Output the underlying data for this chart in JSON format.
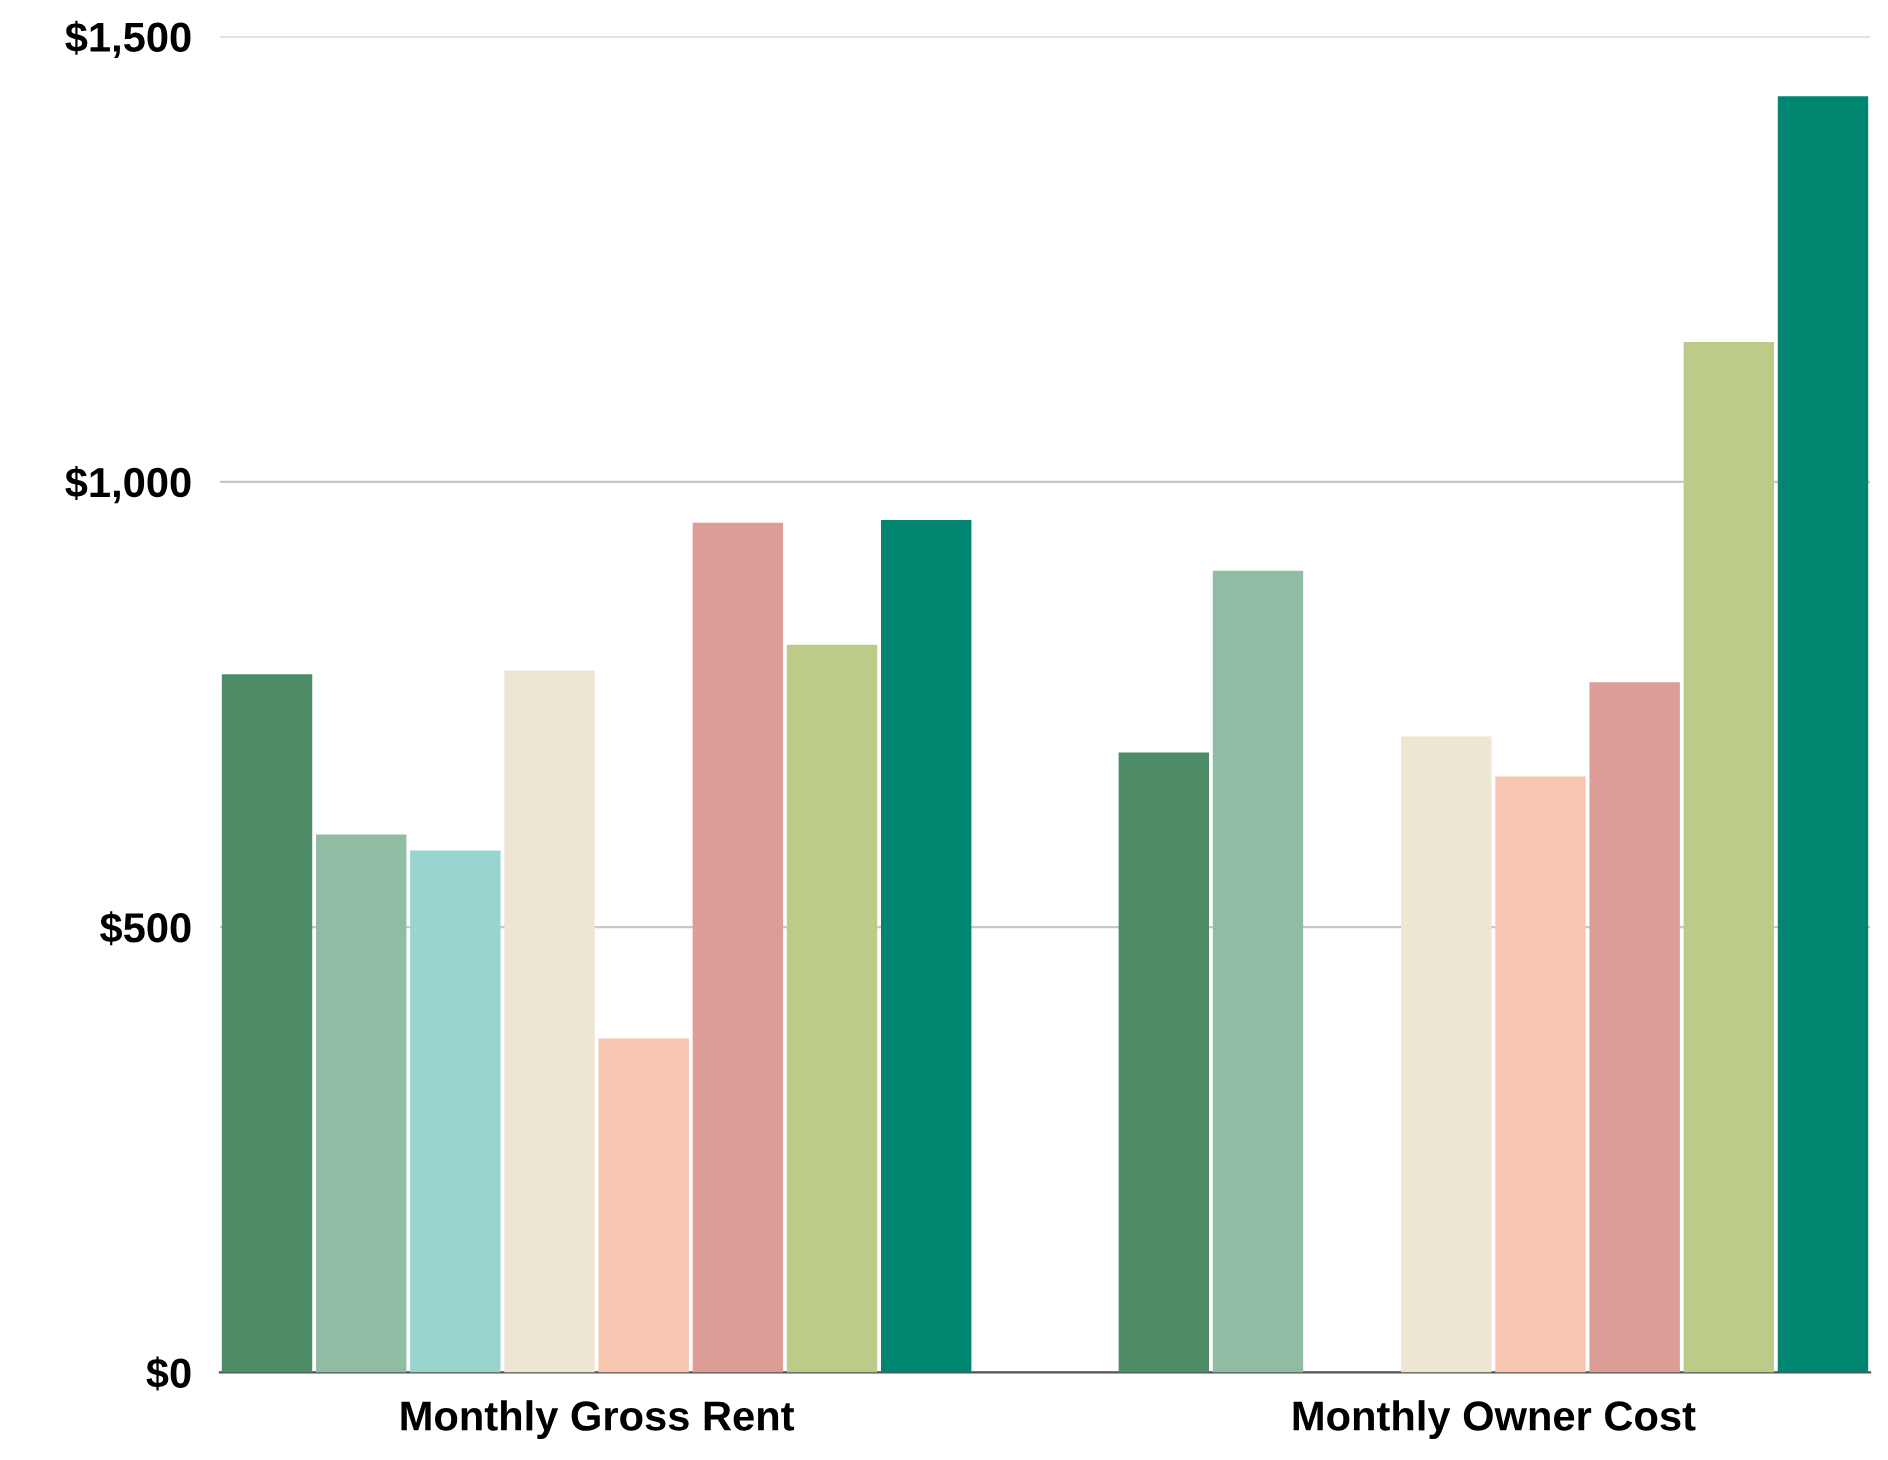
{
  "chart_data": {
    "type": "bar",
    "categories": [
      "Monthly Gross Rent",
      "Monthly Owner Cost"
    ],
    "series": [
      {
        "color": "#4e8c68",
        "values": [
          784,
          696
        ]
      },
      {
        "color": "#91bca4",
        "values": [
          604,
          900
        ]
      },
      {
        "color": "#99d5cf",
        "values": [
          586,
          null
        ]
      },
      {
        "color": "#ede6d2",
        "values": [
          788,
          714
        ]
      },
      {
        "color": "#f7c5b0",
        "values": [
          375,
          669
        ]
      },
      {
        "color": "#dc9c97",
        "values": [
          954,
          775
        ]
      },
      {
        "color": "#bccb87",
        "values": [
          817,
          1157
        ]
      },
      {
        "color": "#008571",
        "values": [
          957,
          1433
        ]
      }
    ],
    "ylim": [
      0,
      1500
    ],
    "yticks": [
      {
        "value": 0,
        "label": "$0"
      },
      {
        "value": 500,
        "label": "$500"
      },
      {
        "value": 1000,
        "label": "$1,000"
      },
      {
        "value": 1500,
        "label": "$1,500"
      }
    ],
    "grid": "y"
  }
}
